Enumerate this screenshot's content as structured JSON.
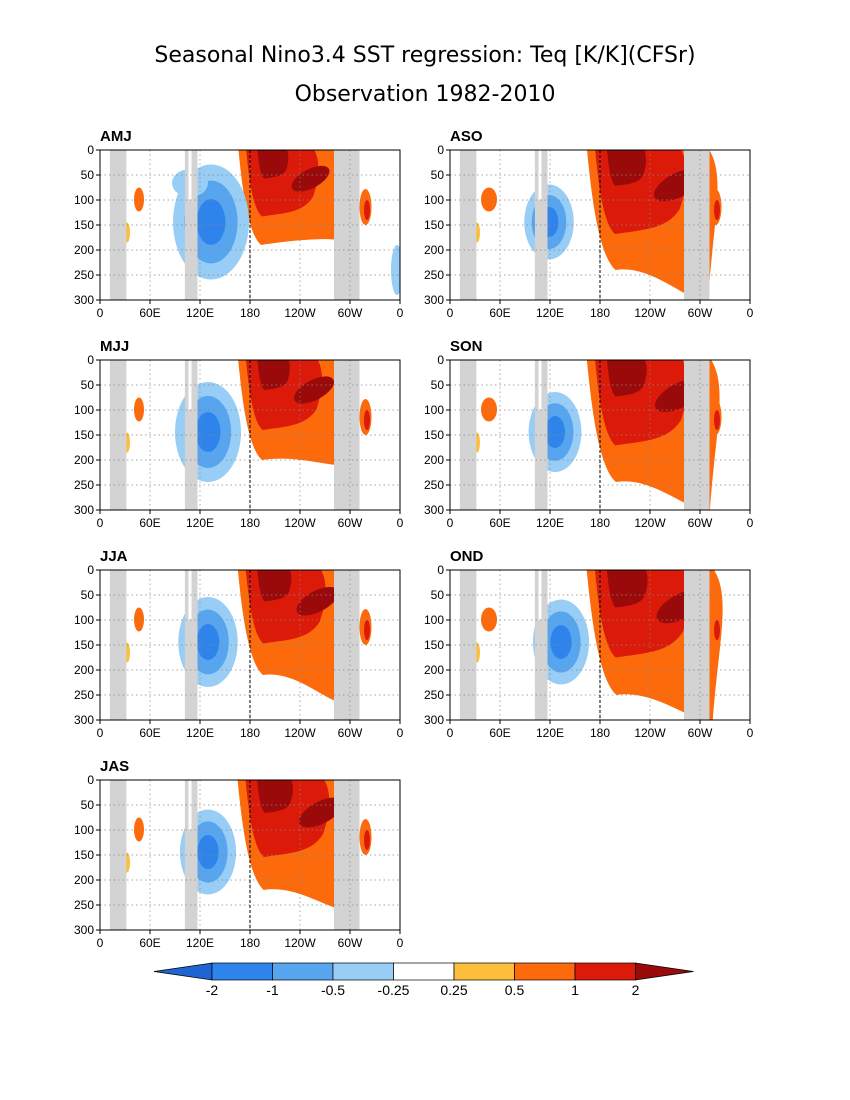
{
  "title": "Seasonal Nino3.4 SST regression: Teq [K/K](CFSr)",
  "subtitle": "Observation 1982-2010",
  "chart_data": {
    "type": "heatmap",
    "variable": "Teq",
    "units": "K/K",
    "x_ticks": [
      "0",
      "60E",
      "120E",
      "180",
      "120W",
      "60W",
      "0"
    ],
    "y_ticks": [
      "0",
      "50",
      "100",
      "150",
      "200",
      "250",
      "300"
    ],
    "ylim": [
      300,
      0
    ],
    "grid": true,
    "colorbar": {
      "levels": [
        "-2",
        "-1",
        "-0.5",
        "-0.25",
        "0.25",
        "0.5",
        "1",
        "2"
      ],
      "colors": [
        "#1e64d2",
        "#2f84eb",
        "#57a5ee",
        "#98cdf6",
        "#ffffff",
        "#fdbe3c",
        "#fd6a0c",
        "#db1a0a",
        "#9a0a0a"
      ]
    },
    "panels": [
      {
        "label": "AMJ"
      },
      {
        "label": "ASO"
      },
      {
        "label": "MJJ"
      },
      {
        "label": "SON"
      },
      {
        "label": "JJA"
      },
      {
        "label": "OND"
      },
      {
        "label": "JAS"
      }
    ]
  }
}
